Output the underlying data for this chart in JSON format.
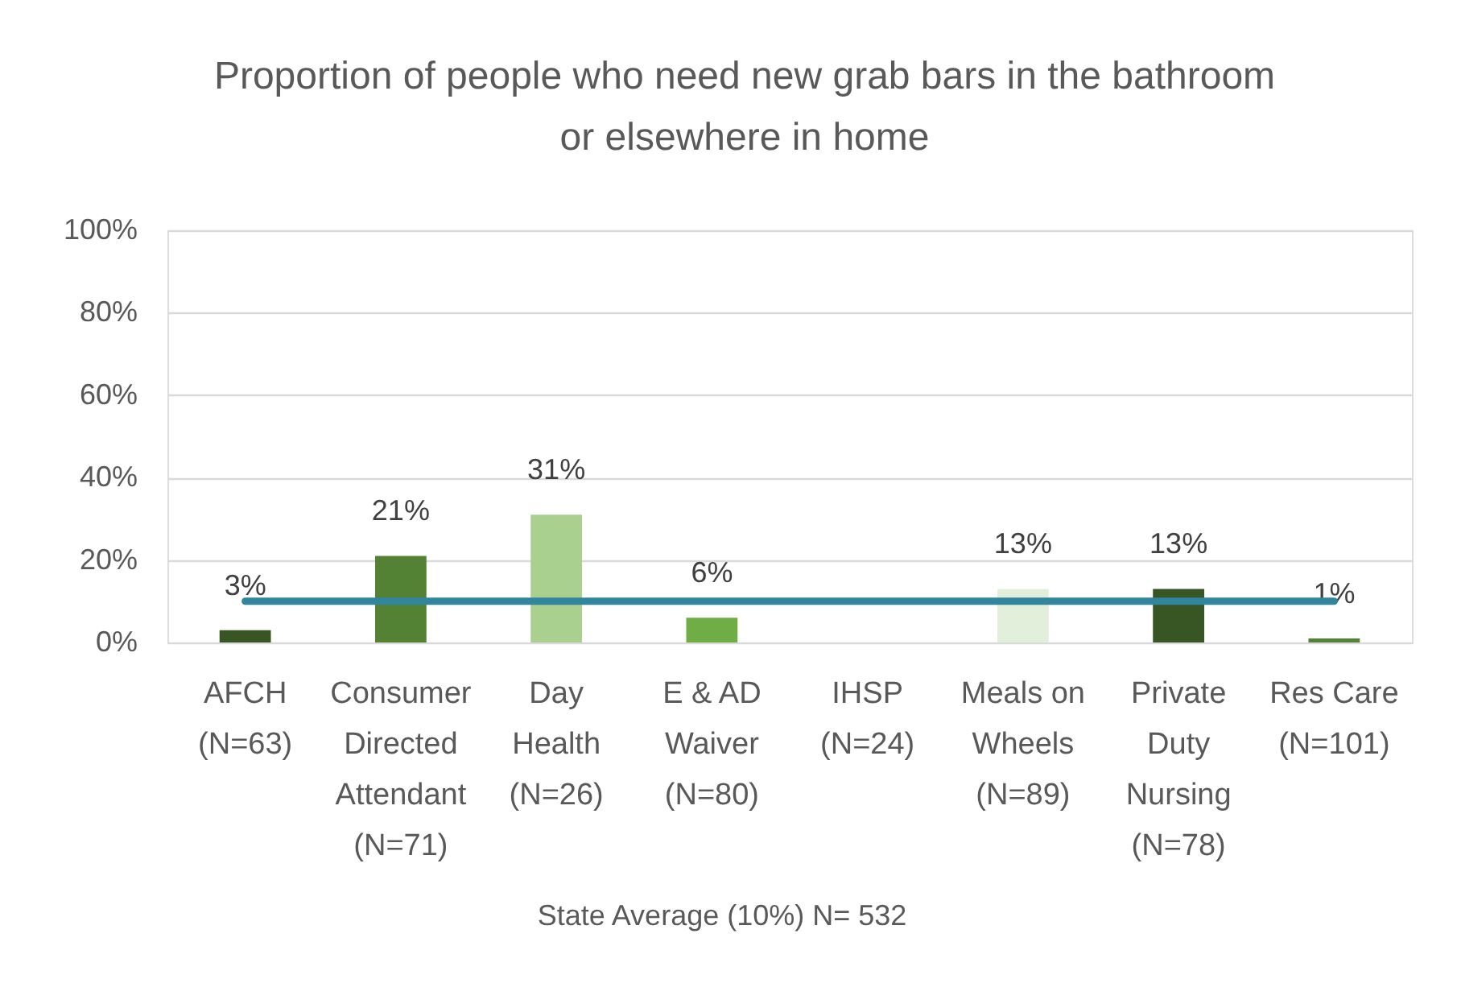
{
  "chart_data": {
    "type": "bar",
    "title": "Proportion of people who need new grab bars in the bathroom or elsewhere  in home",
    "xlabel": "State Average (10%) N= 532",
    "categories": [
      "AFCH (N=63)",
      "Consumer Directed Attendant (N=71)",
      "Day Health (N=26)",
      "E & AD Waiver (N=80)",
      "IHSP (N=24)",
      "Meals on Wheels (N=89)",
      "Private Duty Nursing (N=78)",
      "Res Care (N=101)"
    ],
    "series": [
      {
        "colors": [
          "#375623",
          "#548235",
          "#a9d08e",
          "#70ad47",
          null,
          "#e2efda",
          "#375623",
          "#548235"
        ],
        "values": [
          3,
          21,
          31,
          6,
          null,
          13,
          13,
          1
        ],
        "value_labels": [
          "3%",
          "21%",
          "31%",
          "6%",
          null,
          "13%",
          "13%",
          "1%"
        ]
      },
      {
        "type": "line",
        "color": "#31859c",
        "values": [
          10,
          10,
          10,
          10,
          10,
          10,
          10,
          10
        ],
        "line_style": "solid"
      }
    ],
    "ylim": [
      0,
      100
    ],
    "yticks": [
      {
        "value": 0,
        "label": "0%"
      },
      {
        "value": 20,
        "label": "20%"
      },
      {
        "value": 40,
        "label": "40%"
      },
      {
        "value": 60,
        "label": "60%"
      },
      {
        "value": 80,
        "label": "80%"
      },
      {
        "value": 100,
        "label": "100%"
      }
    ],
    "grid": "y"
  }
}
